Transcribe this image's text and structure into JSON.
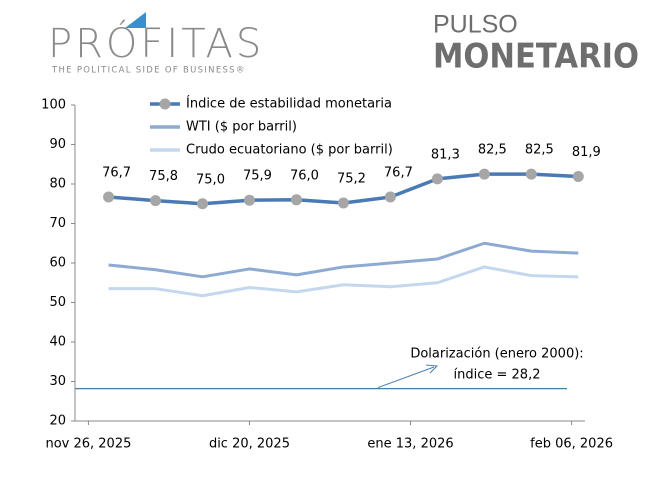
{
  "header": {
    "brand": "PRÓFITAS",
    "tagline": "THE POLITICAL SIDE OF BUSINESS®",
    "product_top": "PULSO",
    "product_bottom": "MONETARIO"
  },
  "chart_data": {
    "type": "line",
    "x": [
      "2025-11-29",
      "2025-12-06",
      "2025-12-13",
      "2025-12-20",
      "2025-12-27",
      "2026-01-03",
      "2026-01-10",
      "2026-01-17",
      "2026-01-24",
      "2026-01-31",
      "2026-02-07"
    ],
    "xlim": [
      "2025-11-24",
      "2026-02-08"
    ],
    "xticks": [
      {
        "value": "2025-11-26",
        "label": "nov 26, 2025"
      },
      {
        "value": "2025-12-20",
        "label": "dic 20, 2025"
      },
      {
        "value": "2026-01-13",
        "label": "ene 13, 2026"
      },
      {
        "value": "2026-02-06",
        "label": "feb 06, 2026"
      }
    ],
    "ylim": [
      20,
      100
    ],
    "yticks": [
      20,
      30,
      40,
      50,
      60,
      70,
      80,
      90,
      100
    ],
    "grid": false,
    "series": [
      {
        "name": "Índice de estabilidad monetaria",
        "color": "#4a7ab5",
        "marker_color": "#a6a6a6",
        "values": [
          76.7,
          75.8,
          75.0,
          75.9,
          76.0,
          75.2,
          76.7,
          81.3,
          82.5,
          82.5,
          81.9
        ],
        "value_labels": [
          "76,7",
          "75,8",
          "75,0",
          "75,9",
          "76,0",
          "75,2",
          "76,7",
          "81,3",
          "82,5",
          "82,5",
          "81,9"
        ]
      },
      {
        "name": "WTI ($ por barril)",
        "color": "#8eaad3",
        "values": [
          59.5,
          58.3,
          56.5,
          58.5,
          57.0,
          59.0,
          60.0,
          61.0,
          65.0,
          63.0,
          62.5
        ]
      },
      {
        "name": "Crudo ecuatoriano ($ por barril)",
        "color": "#c5d7ee",
        "values": [
          53.5,
          53.5,
          51.7,
          53.8,
          52.7,
          54.5,
          54.0,
          55.0,
          59.0,
          56.8,
          56.5
        ]
      }
    ],
    "reference_line": {
      "value": 28.2,
      "color": "#4a7fa0",
      "label_top": "Dolarización (enero 2000):",
      "label_bottom": "índice = 28,2"
    }
  }
}
